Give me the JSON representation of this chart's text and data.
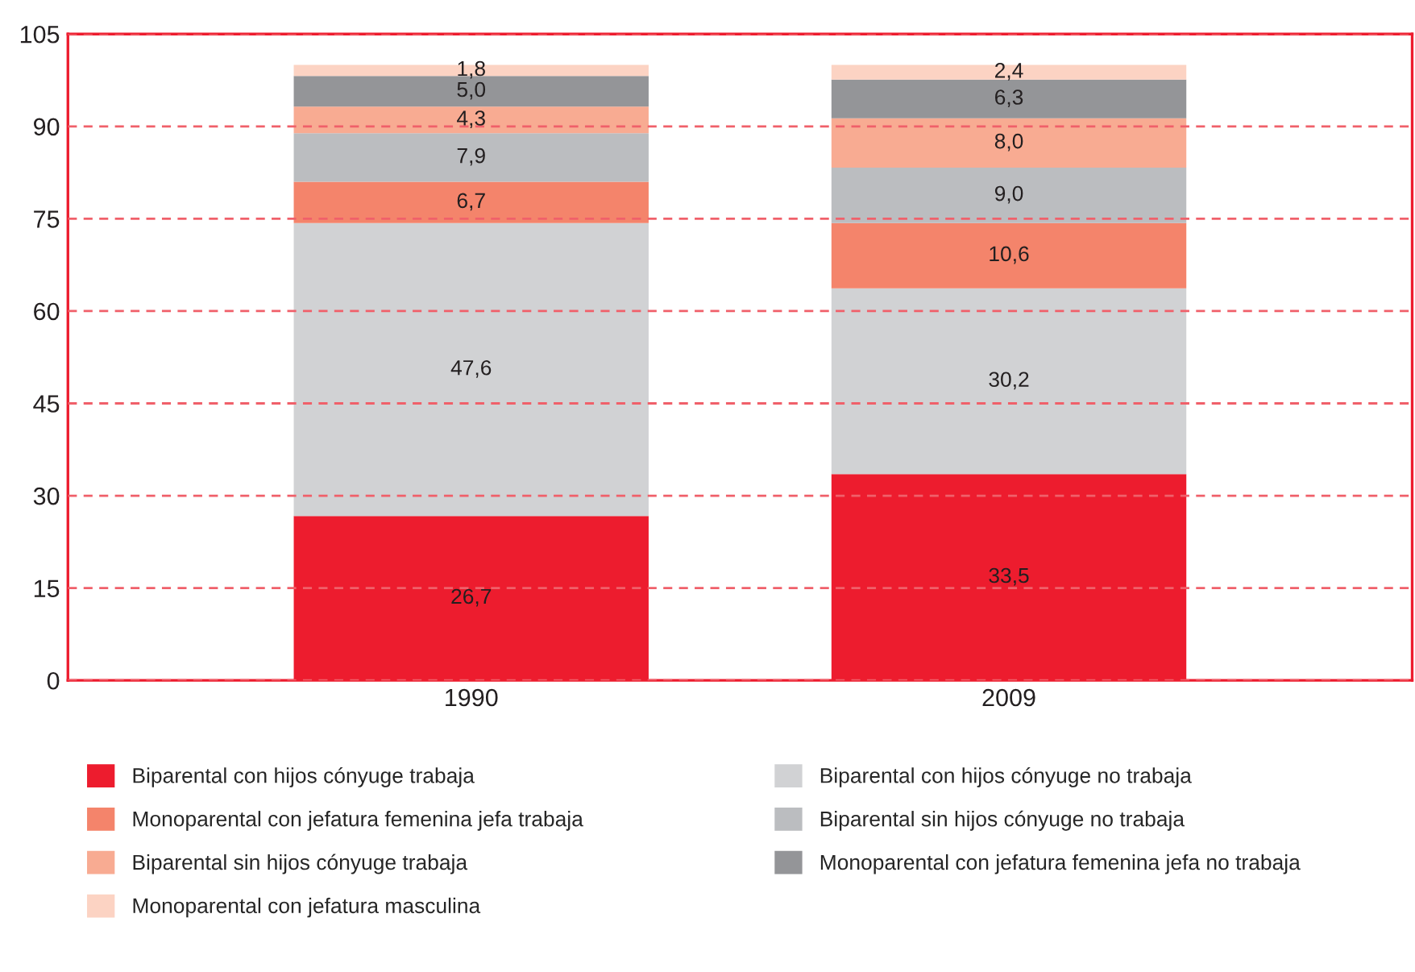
{
  "chart_data": {
    "type": "bar",
    "stacked": true,
    "categories": [
      "1990",
      "2009"
    ],
    "ylim": [
      0,
      105
    ],
    "yticks": [
      0,
      15,
      30,
      45,
      60,
      75,
      90,
      105
    ],
    "grid": "y",
    "legend": "bottom",
    "series": [
      {
        "name": "Biparental con hijos cónyuge trabaja",
        "color": "#ed1c2e",
        "values": [
          26.7,
          33.5
        ],
        "value_labels": [
          "26,7",
          "33,5"
        ]
      },
      {
        "name": "Biparental con hijos cónyuge no trabaja",
        "color": "#d1d2d4",
        "values": [
          47.6,
          30.2
        ],
        "value_labels": [
          "47,6",
          "30,2"
        ]
      },
      {
        "name": "Monoparental con jefatura femenina jefa trabaja",
        "color": "#f4846b",
        "values": [
          6.7,
          10.6
        ],
        "value_labels": [
          "6,7",
          "10,6"
        ]
      },
      {
        "name": "Biparental sin hijos cónyuge no trabaja",
        "color": "#bbbdc0",
        "values": [
          7.9,
          9.0
        ],
        "value_labels": [
          "7,9",
          "9,0"
        ]
      },
      {
        "name": "Biparental sin hijos cónyuge trabaja",
        "color": "#f8ab92",
        "values": [
          4.3,
          8.0
        ],
        "value_labels": [
          "4,3",
          "8,0"
        ]
      },
      {
        "name": "Monoparental con jefatura femenina jefa no trabaja",
        "color": "#949598",
        "values": [
          5.0,
          6.3
        ],
        "value_labels": [
          "5,0",
          "6,3"
        ]
      },
      {
        "name": "Monoparental con jefatura masculina",
        "color": "#fcd3c3",
        "values": [
          1.8,
          2.4
        ],
        "value_labels": [
          "1,8",
          "2,4"
        ]
      }
    ]
  }
}
